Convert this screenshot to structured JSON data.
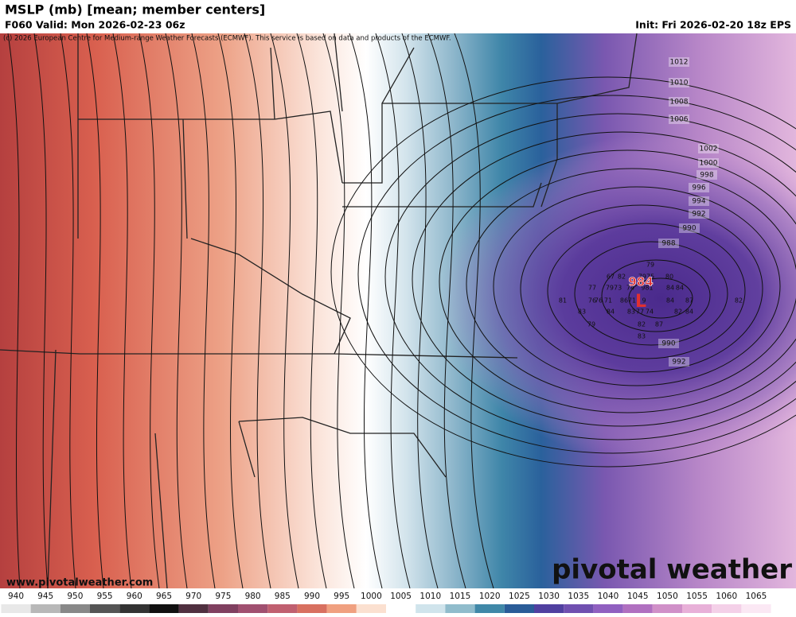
{
  "header": {
    "title": "MSLP (mb) [mean; member centers]",
    "valid": "F060 Valid: Mon 2026-02-23 06z",
    "init": "Init: Fri 2026-02-20 18z EPS",
    "copyright": "(c) 2026 European Centre for Medium-range Weather Forecasts (ECMWF). This service is based on data and products of the ECMWF."
  },
  "map": {
    "low_value": "984",
    "low_symbol": "L",
    "contour_labels": [
      "1012",
      "1010",
      "1008",
      "1006",
      "1002",
      "1000",
      "998",
      "996",
      "994",
      "992",
      "990",
      "988",
      "990",
      "992"
    ],
    "member_labels": [
      "79",
      "67",
      "82",
      "7975",
      "80",
      "77",
      "7973",
      "74",
      "981",
      "84",
      "84",
      "81",
      "76",
      "76",
      "71",
      "86",
      "71",
      "9",
      "84",
      "87",
      "82",
      "83",
      "84",
      "83",
      "77",
      "74",
      "82",
      "84",
      "79",
      "82",
      "87",
      "83"
    ]
  },
  "footer": {
    "url": "www.pivotalweather.com",
    "watermark": "pivotal weather"
  },
  "colorbar": {
    "ticks": [
      "940",
      "945",
      "950",
      "955",
      "960",
      "965",
      "970",
      "975",
      "980",
      "985",
      "990",
      "995",
      "1000",
      "1005",
      "1010",
      "1015",
      "1020",
      "1025",
      "1030",
      "1035",
      "1040",
      "1045",
      "1050",
      "1055",
      "1060",
      "1065"
    ]
  }
}
